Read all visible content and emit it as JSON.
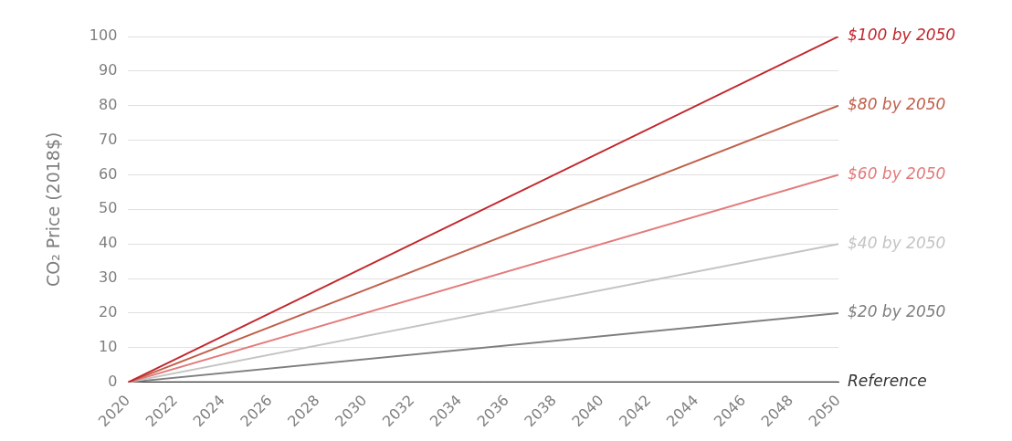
{
  "chart_data": {
    "type": "line",
    "y_label": "CO₂ Price (2018$)",
    "x": [
      2020,
      2050
    ],
    "xlim": [
      2020,
      2050
    ],
    "xticks": [
      2020,
      2022,
      2024,
      2026,
      2028,
      2030,
      2032,
      2034,
      2036,
      2038,
      2040,
      2042,
      2044,
      2046,
      2048,
      2050
    ],
    "ylim": [
      0,
      100
    ],
    "yticks": [
      0,
      10,
      20,
      30,
      40,
      50,
      60,
      70,
      80,
      90,
      100
    ],
    "grid": true,
    "series": [
      {
        "name": "$100 by 2050",
        "color": "#c1272d",
        "values": [
          0,
          100
        ]
      },
      {
        "name": "$80 by 2050",
        "color": "#c0604a",
        "values": [
          0,
          80
        ]
      },
      {
        "name": "$60 by 2050",
        "color": "#e37b7b",
        "values": [
          0,
          60
        ]
      },
      {
        "name": "$40 by 2050",
        "color": "#c4c4c4",
        "values": [
          0,
          40
        ]
      },
      {
        "name": "$20 by 2050",
        "color": "#7f7f7f",
        "values": [
          0,
          20
        ]
      },
      {
        "name": "Reference",
        "color": "#333333",
        "values": [
          0,
          0
        ]
      }
    ]
  }
}
